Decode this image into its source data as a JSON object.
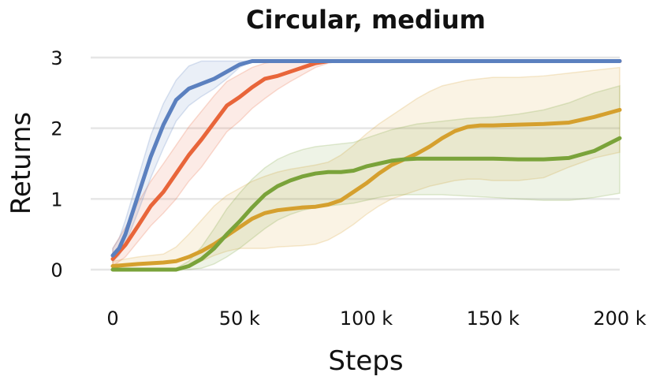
{
  "chart_data": {
    "type": "line",
    "title": "Circular, medium",
    "xlabel": "Steps",
    "ylabel": "Returns",
    "xlim": [
      0,
      200000
    ],
    "ylim": [
      0,
      3
    ],
    "xticks": [
      0,
      50000,
      100000,
      150000,
      200000
    ],
    "xtick_labels": [
      "0",
      "50 k",
      "100 k",
      "150 k",
      "200 k"
    ],
    "yticks": [
      0,
      1,
      2,
      3
    ],
    "ytick_labels": [
      "0",
      "1",
      "2",
      "3"
    ],
    "grid": true,
    "legend": "none",
    "series": [
      {
        "color": "#d5a02e",
        "x": [
          0,
          10000,
          20000,
          25000,
          30000,
          35000,
          40000,
          45000,
          50000,
          55000,
          60000,
          65000,
          70000,
          75000,
          80000,
          85000,
          90000,
          95000,
          100000,
          105000,
          110000,
          115000,
          120000,
          125000,
          130000,
          135000,
          140000,
          145000,
          150000,
          160000,
          170000,
          180000,
          190000,
          200000
        ],
        "y": [
          0.05,
          0.08,
          0.1,
          0.12,
          0.18,
          0.26,
          0.36,
          0.48,
          0.6,
          0.72,
          0.8,
          0.84,
          0.86,
          0.88,
          0.89,
          0.92,
          0.98,
          1.1,
          1.22,
          1.36,
          1.48,
          1.56,
          1.64,
          1.74,
          1.86,
          1.96,
          2.02,
          2.04,
          2.04,
          2.05,
          2.06,
          2.08,
          2.16,
          2.26
        ],
        "band_low": [
          0.0,
          0.0,
          0.0,
          0.02,
          0.05,
          0.12,
          0.2,
          0.26,
          0.3,
          0.3,
          0.3,
          0.32,
          0.33,
          0.34,
          0.36,
          0.42,
          0.52,
          0.64,
          0.78,
          0.9,
          1.0,
          1.06,
          1.12,
          1.18,
          1.22,
          1.26,
          1.28,
          1.28,
          1.26,
          1.26,
          1.3,
          1.45,
          1.58,
          1.66
        ],
        "band_high": [
          0.12,
          0.18,
          0.22,
          0.32,
          0.5,
          0.7,
          0.9,
          1.05,
          1.15,
          1.25,
          1.32,
          1.38,
          1.42,
          1.45,
          1.48,
          1.52,
          1.62,
          1.76,
          1.92,
          2.06,
          2.18,
          2.3,
          2.42,
          2.52,
          2.6,
          2.64,
          2.68,
          2.7,
          2.72,
          2.72,
          2.74,
          2.78,
          2.82,
          2.86
        ]
      },
      {
        "color": "#e8653a",
        "x": [
          0,
          5000,
          10000,
          15000,
          20000,
          25000,
          30000,
          35000,
          40000,
          45000,
          50000,
          55000,
          60000,
          65000,
          70000,
          75000,
          80000,
          85000,
          90000,
          200000
        ],
        "y": [
          0.15,
          0.35,
          0.62,
          0.9,
          1.1,
          1.36,
          1.62,
          1.84,
          2.08,
          2.32,
          2.44,
          2.58,
          2.7,
          2.74,
          2.8,
          2.86,
          2.92,
          2.95,
          2.95,
          2.95
        ],
        "band_low": [
          0.05,
          0.18,
          0.4,
          0.62,
          0.8,
          1.0,
          1.25,
          1.45,
          1.7,
          1.95,
          2.1,
          2.28,
          2.42,
          2.55,
          2.66,
          2.76,
          2.86,
          2.92,
          2.95,
          2.95
        ],
        "band_high": [
          0.3,
          0.6,
          0.95,
          1.25,
          1.5,
          1.76,
          2.02,
          2.24,
          2.46,
          2.66,
          2.76,
          2.86,
          2.92,
          2.95,
          2.95,
          2.95,
          2.95,
          2.95,
          2.95,
          2.95
        ]
      },
      {
        "color": "#7aa33a",
        "x": [
          0,
          25000,
          30000,
          35000,
          40000,
          45000,
          50000,
          55000,
          60000,
          65000,
          70000,
          75000,
          80000,
          85000,
          90000,
          95000,
          100000,
          105000,
          110000,
          115000,
          120000,
          130000,
          140000,
          150000,
          160000,
          170000,
          180000,
          190000,
          200000
        ],
        "y": [
          0.0,
          0.0,
          0.05,
          0.15,
          0.3,
          0.5,
          0.68,
          0.88,
          1.06,
          1.18,
          1.26,
          1.32,
          1.36,
          1.38,
          1.38,
          1.4,
          1.46,
          1.5,
          1.54,
          1.56,
          1.57,
          1.57,
          1.57,
          1.57,
          1.56,
          1.56,
          1.58,
          1.68,
          1.86
        ],
        "band_low": [
          0.0,
          0.0,
          0.0,
          0.02,
          0.08,
          0.18,
          0.3,
          0.44,
          0.58,
          0.7,
          0.78,
          0.84,
          0.88,
          0.9,
          0.92,
          0.94,
          0.98,
          1.02,
          1.05,
          1.06,
          1.06,
          1.06,
          1.04,
          1.02,
          1.0,
          0.98,
          0.98,
          1.02,
          1.08
        ],
        "band_high": [
          0.0,
          0.02,
          0.12,
          0.32,
          0.58,
          0.86,
          1.08,
          1.28,
          1.44,
          1.56,
          1.64,
          1.7,
          1.74,
          1.76,
          1.78,
          1.8,
          1.86,
          1.92,
          1.98,
          2.02,
          2.06,
          2.1,
          2.14,
          2.16,
          2.2,
          2.26,
          2.36,
          2.5,
          2.6
        ]
      },
      {
        "color": "#5b80bf",
        "x": [
          0,
          2500,
          5000,
          10000,
          15000,
          20000,
          25000,
          30000,
          35000,
          40000,
          45000,
          50000,
          55000,
          60000,
          200000
        ],
        "y": [
          0.2,
          0.3,
          0.5,
          1.05,
          1.6,
          2.05,
          2.4,
          2.56,
          2.63,
          2.7,
          2.8,
          2.9,
          2.95,
          2.95,
          2.95
        ],
        "band_low": [
          0.12,
          0.2,
          0.36,
          0.82,
          1.3,
          1.72,
          2.1,
          2.32,
          2.45,
          2.56,
          2.7,
          2.86,
          2.95,
          2.95,
          2.95
        ],
        "band_high": [
          0.3,
          0.44,
          0.7,
          1.3,
          1.9,
          2.35,
          2.68,
          2.88,
          2.95,
          2.95,
          2.95,
          2.95,
          2.95,
          2.95,
          2.95
        ]
      }
    ]
  }
}
